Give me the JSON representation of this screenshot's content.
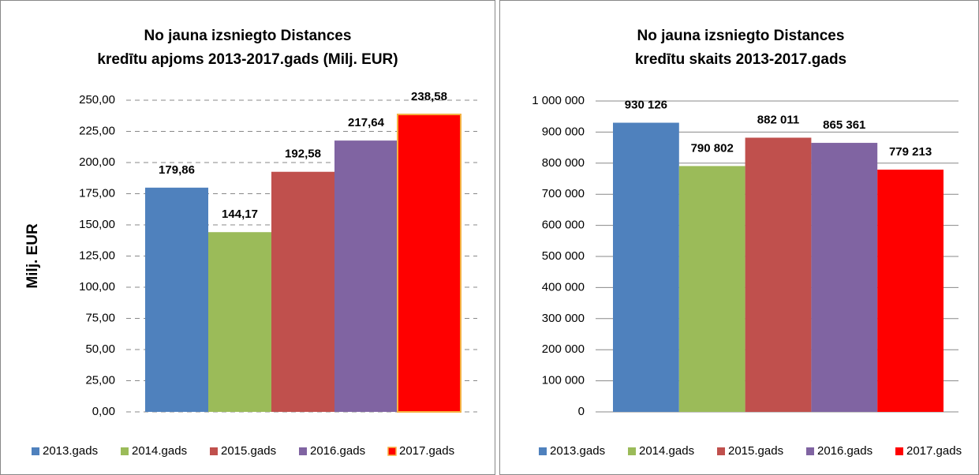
{
  "chart_data": [
    {
      "type": "bar",
      "title": [
        "No jauna izsniegto Distances",
        "kredītu apjoms 2013-2017.gads (Milj. EUR)"
      ],
      "ylabel": "Milj. EUR",
      "ylim": [
        0,
        250
      ],
      "yticks": [
        {
          "value": 0,
          "label": "0,00"
        },
        {
          "value": 25,
          "label": "25,00"
        },
        {
          "value": 50,
          "label": "50,00"
        },
        {
          "value": 75,
          "label": "75,00"
        },
        {
          "value": 100,
          "label": "100,00"
        },
        {
          "value": 125,
          "label": "125,00"
        },
        {
          "value": 150,
          "label": "150,00"
        },
        {
          "value": 175,
          "label": "175,00"
        },
        {
          "value": 200,
          "label": "200,00"
        },
        {
          "value": 225,
          "label": "225,00"
        },
        {
          "value": 250,
          "label": "250,00"
        }
      ],
      "grid": true,
      "grid_style": "dashed",
      "legend": "bottom",
      "series": [
        {
          "name": "2013.gads",
          "color": "#4f81bd",
          "values": [
            179.86
          ],
          "value_labels": [
            "179,86"
          ]
        },
        {
          "name": "2014.gads",
          "color": "#9bbb59",
          "values": [
            144.17
          ],
          "value_labels": [
            "144,17"
          ]
        },
        {
          "name": "2015.gads",
          "color": "#c0504d",
          "values": [
            192.58
          ],
          "value_labels": [
            "192,58"
          ]
        },
        {
          "name": "2016.gads",
          "color": "#8064a2",
          "values": [
            217.64
          ],
          "value_labels": [
            "217,64"
          ]
        },
        {
          "name": "2017.gads",
          "color": "#ff0000",
          "edgecolor": "#f5b041",
          "values": [
            238.58
          ],
          "value_labels": [
            "238,58"
          ]
        }
      ]
    },
    {
      "type": "bar",
      "title": [
        "No jauna izsniegto Distances",
        "kredītu skaits 2013-2017.gads"
      ],
      "ylim": [
        0,
        1000000
      ],
      "yticks": [
        0,
        {
          "value": 100000,
          "label": "100 000"
        },
        {
          "value": 200000,
          "label": "200 000"
        },
        {
          "value": 300000,
          "label": "300 000"
        },
        {
          "value": 400000,
          "label": "400 000"
        },
        {
          "value": 500000,
          "label": "500 000"
        },
        {
          "value": 600000,
          "label": "600 000"
        },
        {
          "value": 700000,
          "label": "700 000"
        },
        {
          "value": 800000,
          "label": "800 000"
        },
        {
          "value": 900000,
          "label": "900 000"
        },
        {
          "value": 1000000,
          "label": "1 000 000"
        }
      ],
      "grid": true,
      "grid_style": "solid",
      "legend": "bottom",
      "series": [
        {
          "name": "2013.gads",
          "color": "#4f81bd",
          "values": [
            930126
          ],
          "value_labels": [
            "930 126"
          ]
        },
        {
          "name": "2014.gads",
          "color": "#9bbb59",
          "values": [
            790802
          ],
          "value_labels": [
            "790 802"
          ]
        },
        {
          "name": "2015.gads",
          "color": "#c0504d",
          "values": [
            882011
          ],
          "value_labels": [
            "882 011"
          ]
        },
        {
          "name": "2016.gads",
          "color": "#8064a2",
          "values": [
            865361
          ],
          "value_labels": [
            "865 361"
          ]
        },
        {
          "name": "2017.gads",
          "color": "#ff0000",
          "values": [
            779213
          ],
          "value_labels": [
            "779 213"
          ]
        }
      ]
    }
  ]
}
